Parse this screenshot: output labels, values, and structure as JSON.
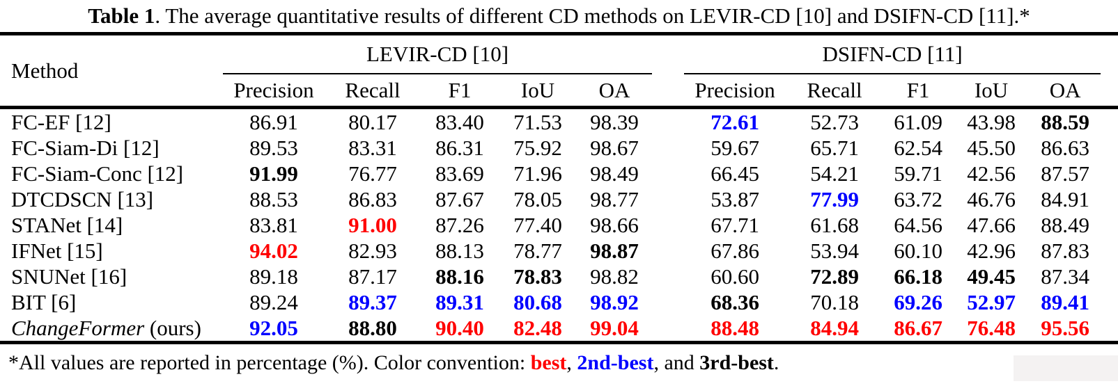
{
  "title": {
    "bold": "Table 1",
    "rest": ". The average quantitative results of different CD methods on LEVIR-CD [10] and DSIFN-CD [11].*"
  },
  "colors": {
    "best": "#ff0000",
    "second_best": "#0000ff",
    "third_best": "#000000"
  },
  "style_codes": {
    "n": "normal",
    "b": "3rd-best (bold black)",
    "r": "best (bold red)",
    "u": "2nd-best (bold blue)"
  },
  "table": {
    "method_header": "Method",
    "groups": [
      {
        "label": "LEVIR-CD [10]",
        "metrics": [
          "Precision",
          "Recall",
          "F1",
          "IoU",
          "OA"
        ]
      },
      {
        "label": "DSIFN-CD [11]",
        "metrics": [
          "Precision",
          "Recall",
          "F1",
          "IoU",
          "OA"
        ]
      }
    ],
    "rows": [
      {
        "method": "FC-EF [12]",
        "levir": [
          [
            "86.91",
            "n"
          ],
          [
            "80.17",
            "n"
          ],
          [
            "83.40",
            "n"
          ],
          [
            "71.53",
            "n"
          ],
          [
            "98.39",
            "n"
          ]
        ],
        "dsifn": [
          [
            "72.61",
            "u"
          ],
          [
            "52.73",
            "n"
          ],
          [
            "61.09",
            "n"
          ],
          [
            "43.98",
            "n"
          ],
          [
            "88.59",
            "b"
          ]
        ]
      },
      {
        "method": "FC-Siam-Di [12]",
        "levir": [
          [
            "89.53",
            "n"
          ],
          [
            "83.31",
            "n"
          ],
          [
            "86.31",
            "n"
          ],
          [
            "75.92",
            "n"
          ],
          [
            "98.67",
            "n"
          ]
        ],
        "dsifn": [
          [
            "59.67",
            "n"
          ],
          [
            "65.71",
            "n"
          ],
          [
            "62.54",
            "n"
          ],
          [
            "45.50",
            "n"
          ],
          [
            "86.63",
            "n"
          ]
        ]
      },
      {
        "method": "FC-Siam-Conc [12]",
        "levir": [
          [
            "91.99",
            "b"
          ],
          [
            "76.77",
            "n"
          ],
          [
            "83.69",
            "n"
          ],
          [
            "71.96",
            "n"
          ],
          [
            "98.49",
            "n"
          ]
        ],
        "dsifn": [
          [
            "66.45",
            "n"
          ],
          [
            "54.21",
            "n"
          ],
          [
            "59.71",
            "n"
          ],
          [
            "42.56",
            "n"
          ],
          [
            "87.57",
            "n"
          ]
        ]
      },
      {
        "method": "DTCDSCN [13]",
        "levir": [
          [
            "88.53",
            "n"
          ],
          [
            "86.83",
            "n"
          ],
          [
            "87.67",
            "n"
          ],
          [
            "78.05",
            "n"
          ],
          [
            "98.77",
            "n"
          ]
        ],
        "dsifn": [
          [
            "53.87",
            "n"
          ],
          [
            "77.99",
            "u"
          ],
          [
            "63.72",
            "n"
          ],
          [
            "46.76",
            "n"
          ],
          [
            "84.91",
            "n"
          ]
        ]
      },
      {
        "method": "STANet [14]",
        "levir": [
          [
            "83.81",
            "n"
          ],
          [
            "91.00",
            "r"
          ],
          [
            "87.26",
            "n"
          ],
          [
            "77.40",
            "n"
          ],
          [
            "98.66",
            "n"
          ]
        ],
        "dsifn": [
          [
            "67.71",
            "n"
          ],
          [
            "61.68",
            "n"
          ],
          [
            "64.56",
            "n"
          ],
          [
            "47.66",
            "n"
          ],
          [
            "88.49",
            "n"
          ]
        ]
      },
      {
        "method": "IFNet [15]",
        "levir": [
          [
            "94.02",
            "r"
          ],
          [
            "82.93",
            "n"
          ],
          [
            "88.13",
            "n"
          ],
          [
            "78.77",
            "n"
          ],
          [
            "98.87",
            "b"
          ]
        ],
        "dsifn": [
          [
            "67.86",
            "n"
          ],
          [
            "53.94",
            "n"
          ],
          [
            "60.10",
            "n"
          ],
          [
            "42.96",
            "n"
          ],
          [
            "87.83",
            "n"
          ]
        ]
      },
      {
        "method": "SNUNet [16]",
        "levir": [
          [
            "89.18",
            "n"
          ],
          [
            "87.17",
            "n"
          ],
          [
            "88.16",
            "b"
          ],
          [
            "78.83",
            "b"
          ],
          [
            "98.82",
            "n"
          ]
        ],
        "dsifn": [
          [
            "60.60",
            "n"
          ],
          [
            "72.89",
            "b"
          ],
          [
            "66.18",
            "b"
          ],
          [
            "49.45",
            "b"
          ],
          [
            "87.34",
            "n"
          ]
        ]
      },
      {
        "method": "BIT [6]",
        "levir": [
          [
            "89.24",
            "n"
          ],
          [
            "89.37",
            "u"
          ],
          [
            "89.31",
            "u"
          ],
          [
            "80.68",
            "u"
          ],
          [
            "98.92",
            "u"
          ]
        ],
        "dsifn": [
          [
            "68.36",
            "b"
          ],
          [
            "70.18",
            "n"
          ],
          [
            "69.26",
            "u"
          ],
          [
            "52.97",
            "u"
          ],
          [
            "89.41",
            "u"
          ]
        ]
      },
      {
        "method_italic": "ChangeFormer",
        "method_rest": " (ours)",
        "levir": [
          [
            "92.05",
            "u"
          ],
          [
            "88.80",
            "b"
          ],
          [
            "90.40",
            "r"
          ],
          [
            "82.48",
            "r"
          ],
          [
            "99.04",
            "r"
          ]
        ],
        "dsifn": [
          [
            "88.48",
            "r"
          ],
          [
            "84.94",
            "r"
          ],
          [
            "86.67",
            "r"
          ],
          [
            "76.48",
            "r"
          ],
          [
            "95.56",
            "r"
          ]
        ]
      }
    ]
  },
  "footnote": {
    "prefix": "*All values are reported in percentage (%). Color convention: ",
    "best": "best",
    "sep1": ", ",
    "second": "2nd-best",
    "sep2": ", and ",
    "third": "3rd-best",
    "suffix": "."
  }
}
